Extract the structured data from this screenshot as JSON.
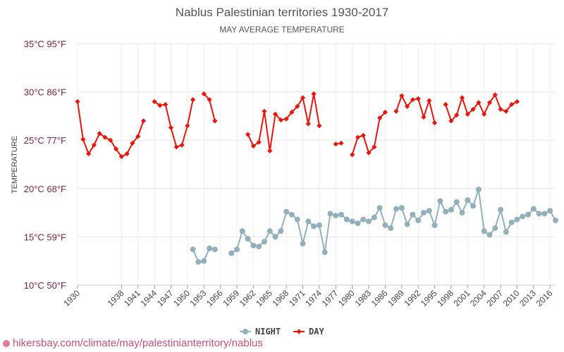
{
  "chart_data": {
    "type": "line",
    "title": "Nablus Palestinian territories 1930-2017",
    "subtitle": "MAY AVERAGE TEMPERATURE",
    "ylabel": "TEMPERATURE",
    "ylim": [
      10,
      35
    ],
    "xlim": [
      1930,
      2017
    ],
    "y_ticks": [
      {
        "value": 10,
        "label": "10°C 50°F"
      },
      {
        "value": 15,
        "label": "15°C 59°F"
      },
      {
        "value": 20,
        "label": "20°C 68°F"
      },
      {
        "value": 25,
        "label": "25°C 77°F"
      },
      {
        "value": 30,
        "label": "30°C 86°F"
      },
      {
        "value": 35,
        "label": "35°C 95°F"
      }
    ],
    "x_ticks": [
      1930,
      1938,
      1941,
      1944,
      1947,
      1950,
      1953,
      1956,
      1959,
      1962,
      1965,
      1968,
      1971,
      1974,
      1977,
      1980,
      1983,
      1986,
      1989,
      1992,
      1995,
      1998,
      2001,
      2004,
      2007,
      2010,
      2013,
      2016
    ],
    "legend_position": "bottom",
    "grid": true,
    "series": [
      {
        "name": "NIGHT",
        "color": "#92b0ba",
        "marker": "circle",
        "points": [
          [
            1951,
            13.7
          ],
          [
            1952,
            12.4
          ],
          [
            1953,
            12.5
          ],
          [
            1954,
            13.8
          ],
          [
            1955,
            13.7
          ],
          [
            1958,
            13.3
          ],
          [
            1959,
            13.7
          ],
          [
            1960,
            15.6
          ],
          [
            1961,
            14.8
          ],
          [
            1962,
            14.1
          ],
          [
            1963,
            14.0
          ],
          [
            1964,
            14.5
          ],
          [
            1965,
            15.6
          ],
          [
            1966,
            15.0
          ],
          [
            1967,
            15.6
          ],
          [
            1968,
            17.6
          ],
          [
            1969,
            17.3
          ],
          [
            1970,
            16.8
          ],
          [
            1971,
            14.3
          ],
          [
            1972,
            16.6
          ],
          [
            1973,
            16.1
          ],
          [
            1974,
            16.2
          ],
          [
            1975,
            13.4
          ],
          [
            1976,
            17.4
          ],
          [
            1977,
            17.2
          ],
          [
            1978,
            17.3
          ],
          [
            1979,
            16.8
          ],
          [
            1980,
            16.6
          ],
          [
            1981,
            16.4
          ],
          [
            1982,
            16.8
          ],
          [
            1983,
            16.6
          ],
          [
            1984,
            17.0
          ],
          [
            1985,
            18.0
          ],
          [
            1986,
            16.2
          ],
          [
            1987,
            15.9
          ],
          [
            1988,
            17.9
          ],
          [
            1989,
            18.0
          ],
          [
            1990,
            16.3
          ],
          [
            1991,
            17.3
          ],
          [
            1992,
            16.7
          ],
          [
            1993,
            17.5
          ],
          [
            1994,
            17.7
          ],
          [
            1995,
            16.2
          ],
          [
            1996,
            18.7
          ],
          [
            1997,
            17.6
          ],
          [
            1998,
            17.8
          ],
          [
            1999,
            18.6
          ],
          [
            2000,
            17.5
          ],
          [
            2001,
            18.8
          ],
          [
            2002,
            18.2
          ],
          [
            2003,
            19.9
          ],
          [
            2004,
            15.6
          ],
          [
            2005,
            15.2
          ],
          [
            2006,
            15.9
          ],
          [
            2007,
            17.8
          ],
          [
            2008,
            15.5
          ],
          [
            2009,
            16.5
          ],
          [
            2010,
            16.8
          ],
          [
            2011,
            17.1
          ],
          [
            2012,
            17.3
          ],
          [
            2013,
            17.9
          ],
          [
            2014,
            17.4
          ],
          [
            2015,
            17.4
          ],
          [
            2016,
            17.7
          ],
          [
            2017,
            16.7
          ]
        ]
      },
      {
        "name": "DAY",
        "color": "#e8160c",
        "marker": "diamond",
        "points": [
          [
            1930,
            29.0
          ],
          [
            1931,
            25.1
          ],
          [
            1932,
            23.6
          ],
          [
            1933,
            24.5
          ],
          [
            1934,
            25.7
          ],
          [
            1935,
            25.3
          ],
          [
            1936,
            25.0
          ],
          [
            1937,
            24.1
          ],
          [
            1938,
            23.3
          ],
          [
            1939,
            23.6
          ],
          [
            1940,
            24.7
          ],
          [
            1941,
            25.4
          ],
          [
            1942,
            27.0
          ],
          [
            1944,
            29.0
          ],
          [
            1945,
            28.6
          ],
          [
            1946,
            28.7
          ],
          [
            1947,
            26.3
          ],
          [
            1948,
            24.3
          ],
          [
            1949,
            24.5
          ],
          [
            1950,
            26.5
          ],
          [
            1951,
            29.2
          ],
          [
            1953,
            29.8
          ],
          [
            1954,
            29.2
          ],
          [
            1955,
            27.0
          ],
          [
            1961,
            25.6
          ],
          [
            1962,
            24.4
          ],
          [
            1963,
            24.8
          ],
          [
            1964,
            28.0
          ],
          [
            1965,
            23.9
          ],
          [
            1966,
            27.7
          ],
          [
            1967,
            27.1
          ],
          [
            1968,
            27.2
          ],
          [
            1969,
            27.9
          ],
          [
            1970,
            28.5
          ],
          [
            1971,
            29.4
          ],
          [
            1972,
            26.7
          ],
          [
            1973,
            29.8
          ],
          [
            1974,
            26.5
          ],
          [
            1977,
            24.6
          ],
          [
            1978,
            24.7
          ],
          [
            1980,
            23.5
          ],
          [
            1981,
            25.3
          ],
          [
            1982,
            25.5
          ],
          [
            1983,
            23.7
          ],
          [
            1984,
            24.3
          ],
          [
            1985,
            27.3
          ],
          [
            1986,
            27.9
          ],
          [
            1988,
            28.0
          ],
          [
            1989,
            29.6
          ],
          [
            1990,
            28.5
          ],
          [
            1991,
            29.2
          ],
          [
            1992,
            29.3
          ],
          [
            1993,
            27.4
          ],
          [
            1994,
            29.1
          ],
          [
            1995,
            26.8
          ],
          [
            1997,
            28.7
          ],
          [
            1998,
            27.0
          ],
          [
            1999,
            27.6
          ],
          [
            2000,
            29.4
          ],
          [
            2001,
            27.7
          ],
          [
            2002,
            28.2
          ],
          [
            2003,
            28.9
          ],
          [
            2004,
            27.7
          ],
          [
            2005,
            28.9
          ],
          [
            2006,
            29.7
          ],
          [
            2007,
            28.2
          ],
          [
            2008,
            28.0
          ],
          [
            2009,
            28.7
          ],
          [
            2010,
            29.0
          ]
        ]
      }
    ]
  },
  "watermark": {
    "text": "hikersbay.com/climate/may/palestinianterritory/nablus"
  }
}
